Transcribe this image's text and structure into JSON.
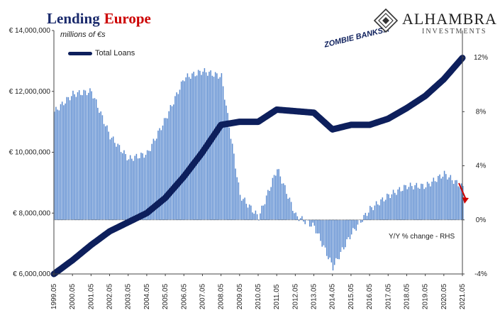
{
  "title_part1": "Lending",
  "title_part2": "Europe",
  "subtitle": "millions of €s",
  "annotation": "ZOMBIE BANKS...",
  "rhs_caption": "Y/Y % change - RHS",
  "logo": {
    "name": "ALHAMBRA",
    "sub": "INVESTMENTS",
    "icon": "alhambra-diamond-logo"
  },
  "colors": {
    "line": "#0d1f5c",
    "bars": "#5b8bd0",
    "title_blue": "#1a2a6c",
    "title_red": "#cc0000",
    "arrow": "#cc0000"
  },
  "chart_data": {
    "type": "bar-line-combo",
    "grid": false,
    "left_axis": {
      "unit": "millions of €",
      "ylim": [
        6000000,
        14000000
      ],
      "ticks": [
        "€ 6,000,000",
        "€ 8,000,000",
        "€ 10,000,000",
        "€ 12,000,000",
        "€ 14,000,000"
      ]
    },
    "right_axis": {
      "ylim": [
        -4,
        14
      ],
      "ticks": [
        "-4%",
        "0%",
        "4%",
        "8%",
        "12%"
      ]
    },
    "x_ticks": [
      "1999.05",
      "2000.05",
      "2001.05",
      "2002.05",
      "2003.05",
      "2004.05",
      "2005.05",
      "2006.05",
      "2007.05",
      "2008.05",
      "2009.05",
      "2010.05",
      "2011.05",
      "2012.05",
      "2013.05",
      "2014.05",
      "2015.05",
      "2016.05",
      "2017.05",
      "2018.05",
      "2019.05",
      "2020.05",
      "2021.05"
    ],
    "series": [
      {
        "name": "Total Loans",
        "type": "line",
        "axis": "left",
        "x": [
          "1999.05",
          "2000.05",
          "2001.05",
          "2002.05",
          "2003.05",
          "2004.05",
          "2005.05",
          "2006.05",
          "2007.05",
          "2008.05",
          "2009.05",
          "2010.05",
          "2011.05",
          "2012.05",
          "2013.05",
          "2014.05",
          "2015.05",
          "2016.05",
          "2017.05",
          "2018.05",
          "2019.05",
          "2020.05",
          "2021.05"
        ],
        "values": [
          6000000,
          6450000,
          6950000,
          7400000,
          7700000,
          8000000,
          8500000,
          9200000,
          10000000,
          10900000,
          11000000,
          11000000,
          11400000,
          11350000,
          11300000,
          10750000,
          10900000,
          10900000,
          11100000,
          11450000,
          11850000,
          12400000,
          13100000
        ]
      },
      {
        "name": "Y/Y % change - RHS",
        "type": "bar",
        "axis": "right",
        "x": [
          "1999.05",
          "2000.05",
          "2001.05",
          "2002.05",
          "2003.05",
          "2004.05",
          "2005.05",
          "2006.05",
          "2007.05",
          "2008.05",
          "2009.05",
          "2010.05",
          "2011.05",
          "2012.05",
          "2013.05",
          "2014.05",
          "2015.05",
          "2016.05",
          "2017.05",
          "2018.05",
          "2019.05",
          "2020.05",
          "2021.05"
        ],
        "values": [
          8.0,
          9.3,
          9.5,
          6.2,
          4.5,
          4.9,
          7.5,
          10.5,
          11.0,
          10.6,
          1.8,
          0.2,
          3.8,
          0.3,
          -0.5,
          -3.5,
          -1.0,
          0.8,
          1.8,
          2.5,
          2.5,
          3.4,
          2.4
        ]
      }
    ]
  }
}
